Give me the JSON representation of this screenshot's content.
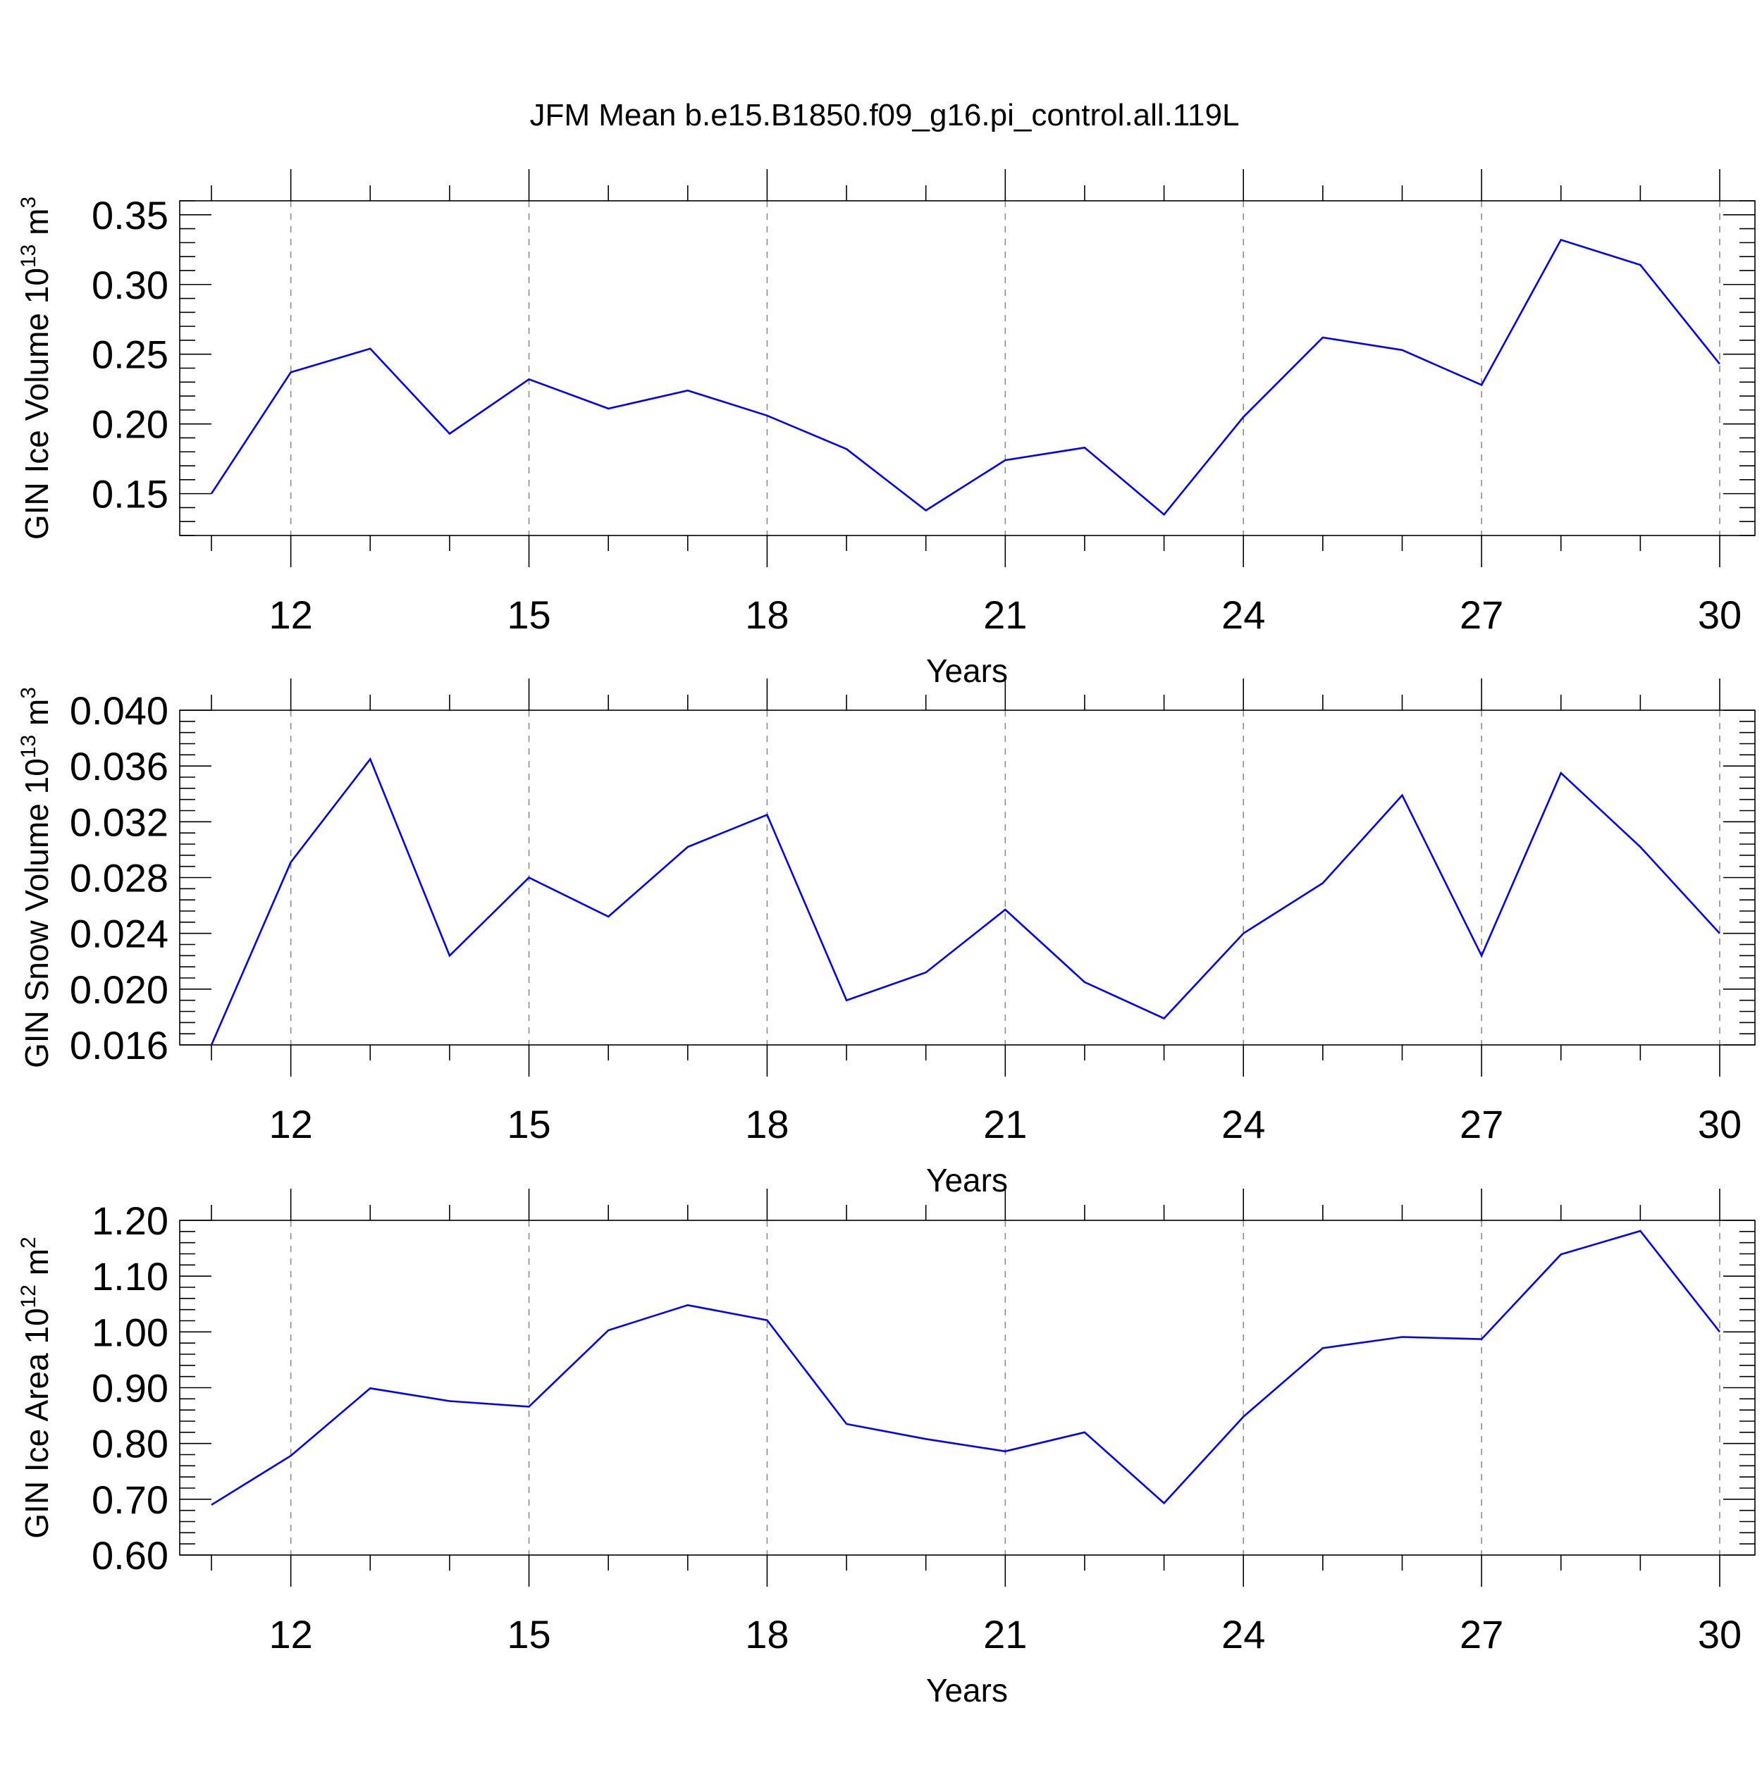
{
  "title": "JFM Mean b.e15.B1850.f09_g16.pi_control.all.119L",
  "chart_data": [
    {
      "type": "line",
      "ylabel_text": "GIN Ice Volume 10",
      "ylabel_exp": "13",
      "ylabel_unit": "m",
      "ylabel_unit_exp": "3",
      "xlabel": "Years",
      "xlim": [
        11,
        30
      ],
      "ylim": [
        0.12,
        0.36
      ],
      "xticks": [
        12,
        15,
        18,
        21,
        24,
        27,
        30
      ],
      "xtick_labels": [
        "12",
        "15",
        "18",
        "21",
        "24",
        "27",
        "30"
      ],
      "yticks": [
        0.15,
        0.2,
        0.25,
        0.3,
        0.35
      ],
      "ytick_labels": [
        "0.15",
        "0.20",
        "0.25",
        "0.30",
        "0.35"
      ],
      "grid": "vertical dashed at major x ticks",
      "line_color": "#0000ff",
      "x": [
        11,
        12,
        13,
        14,
        15,
        16,
        17,
        18,
        19,
        20,
        21,
        22,
        23,
        24,
        25,
        26,
        27,
        28,
        29,
        30
      ],
      "y": [
        0.15,
        0.237,
        0.254,
        0.193,
        0.232,
        0.211,
        0.224,
        0.206,
        0.182,
        0.138,
        0.174,
        0.183,
        0.135,
        0.205,
        0.262,
        0.253,
        0.228,
        0.332,
        0.314,
        0.243
      ]
    },
    {
      "type": "line",
      "ylabel_text": "GIN Snow Volume 10",
      "ylabel_exp": "13",
      "ylabel_unit": "m",
      "ylabel_unit_exp": "3",
      "xlabel": "Years",
      "xlim": [
        11,
        30
      ],
      "ylim": [
        0.016,
        0.04
      ],
      "xticks": [
        12,
        15,
        18,
        21,
        24,
        27,
        30
      ],
      "xtick_labels": [
        "12",
        "15",
        "18",
        "21",
        "24",
        "27",
        "30"
      ],
      "yticks": [
        0.016,
        0.02,
        0.024,
        0.028,
        0.032,
        0.036,
        0.04
      ],
      "ytick_labels": [
        "0.016",
        "0.020",
        "0.024",
        "0.028",
        "0.032",
        "0.036",
        "0.040"
      ],
      "grid": "vertical dashed at major x ticks",
      "line_color": "#0000ff",
      "x": [
        11,
        12,
        13,
        14,
        15,
        16,
        17,
        18,
        19,
        20,
        21,
        22,
        23,
        24,
        25,
        26,
        27,
        28,
        29,
        30
      ],
      "y": [
        0.016,
        0.0291,
        0.0365,
        0.0224,
        0.028,
        0.0252,
        0.0302,
        0.0325,
        0.0192,
        0.0212,
        0.0257,
        0.0205,
        0.0179,
        0.024,
        0.0276,
        0.0339,
        0.0224,
        0.0355,
        0.0302,
        0.024
      ]
    },
    {
      "type": "line",
      "ylabel_text": "GIN Ice Area 10",
      "ylabel_exp": "12",
      "ylabel_unit": "m",
      "ylabel_unit_exp": "2",
      "xlabel": "Years",
      "xlim": [
        11,
        30
      ],
      "ylim": [
        0.6,
        1.2
      ],
      "xticks": [
        12,
        15,
        18,
        21,
        24,
        27,
        30
      ],
      "xtick_labels": [
        "12",
        "15",
        "18",
        "21",
        "24",
        "27",
        "30"
      ],
      "yticks": [
        0.6,
        0.7,
        0.8,
        0.9,
        1.0,
        1.1,
        1.2
      ],
      "ytick_labels": [
        "0.60",
        "0.70",
        "0.80",
        "0.90",
        "1.00",
        "1.10",
        "1.20"
      ],
      "grid": "vertical dashed at major x ticks",
      "line_color": "#0000ff",
      "x": [
        11,
        12,
        13,
        14,
        15,
        16,
        17,
        18,
        19,
        20,
        21,
        22,
        23,
        24,
        25,
        26,
        27,
        28,
        29,
        30
      ],
      "y": [
        0.69,
        0.778,
        0.899,
        0.876,
        0.866,
        1.003,
        1.048,
        1.021,
        0.835,
        0.808,
        0.786,
        0.82,
        0.693,
        0.848,
        0.971,
        0.991,
        0.987,
        1.139,
        1.181,
        1.0
      ]
    }
  ]
}
